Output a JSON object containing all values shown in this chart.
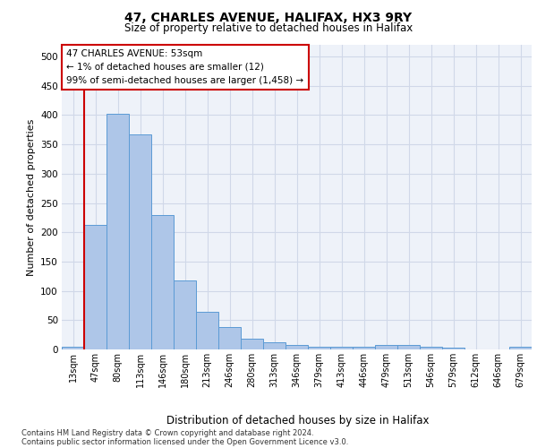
{
  "title1": "47, CHARLES AVENUE, HALIFAX, HX3 9RY",
  "title2": "Size of property relative to detached houses in Halifax",
  "xlabel": "Distribution of detached houses by size in Halifax",
  "ylabel": "Number of detached properties",
  "bar_labels": [
    "13sqm",
    "47sqm",
    "80sqm",
    "113sqm",
    "146sqm",
    "180sqm",
    "213sqm",
    "246sqm",
    "280sqm",
    "313sqm",
    "346sqm",
    "379sqm",
    "413sqm",
    "446sqm",
    "479sqm",
    "513sqm",
    "546sqm",
    "579sqm",
    "612sqm",
    "646sqm",
    "679sqm"
  ],
  "bar_values": [
    5,
    213,
    403,
    367,
    230,
    118,
    65,
    39,
    18,
    13,
    7,
    5,
    5,
    5,
    8,
    8,
    4,
    3,
    0,
    0,
    4
  ],
  "bar_color": "#aec6e8",
  "bar_edge_color": "#5b9bd5",
  "property_line_x": 0.5,
  "annotation_title": "47 CHARLES AVENUE: 53sqm",
  "annotation_line1": "← 1% of detached houses are smaller (12)",
  "annotation_line2": "99% of semi-detached houses are larger (1,458) →",
  "annotation_box_color": "#ffffff",
  "annotation_border_color": "#cc0000",
  "property_line_color": "#cc0000",
  "grid_color": "#d0d8e8",
  "ylim": [
    0,
    520
  ],
  "yticks": [
    0,
    50,
    100,
    150,
    200,
    250,
    300,
    350,
    400,
    450,
    500
  ],
  "footer1": "Contains HM Land Registry data © Crown copyright and database right 2024.",
  "footer2": "Contains public sector information licensed under the Open Government Licence v3.0.",
  "bg_color": "#eef2f9"
}
